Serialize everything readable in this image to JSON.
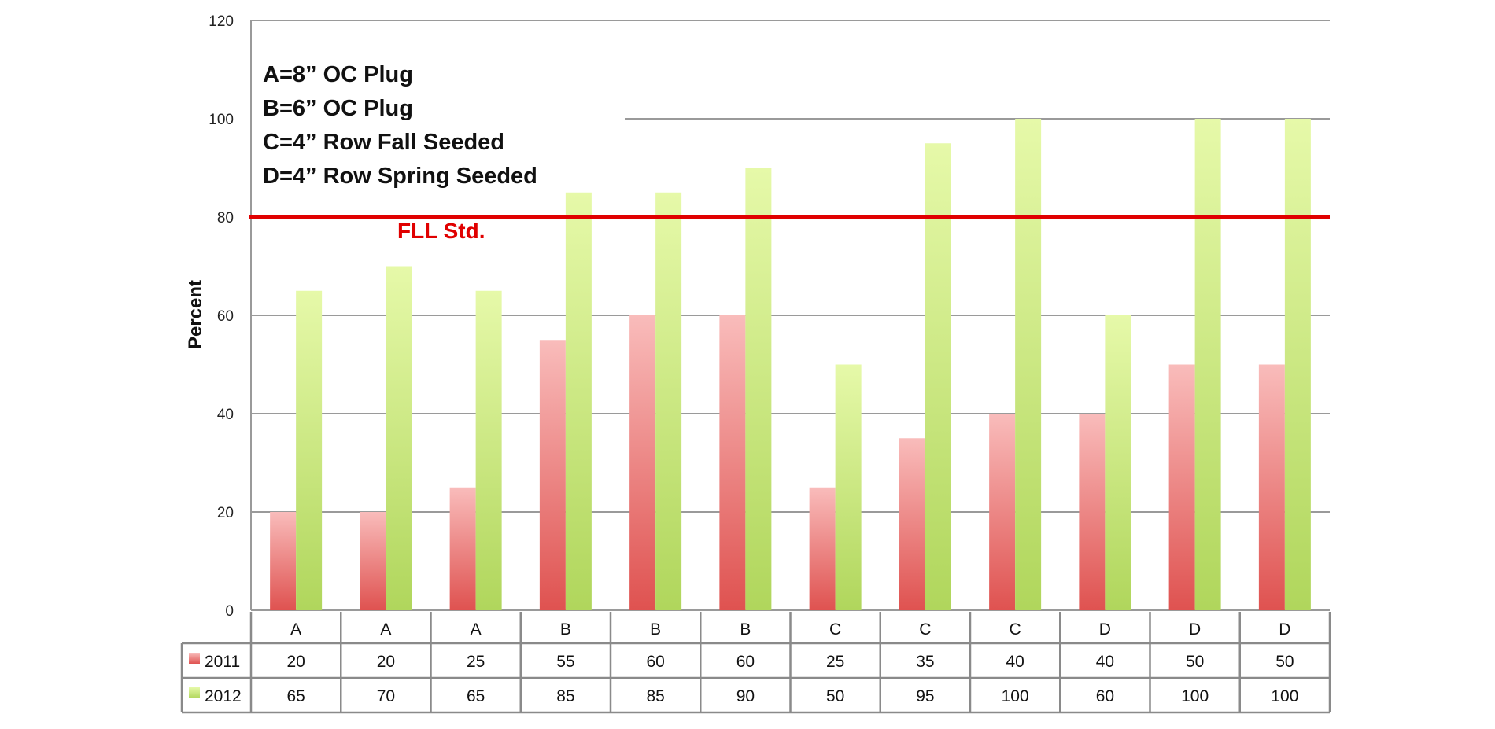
{
  "chart_data": {
    "type": "bar",
    "title": "",
    "xlabel": "",
    "ylabel": "Percent",
    "ylim": [
      0,
      120
    ],
    "yticks": [
      0,
      20,
      40,
      60,
      80,
      100,
      120
    ],
    "grid": true,
    "categories": [
      "A",
      "A",
      "A",
      "B",
      "B",
      "B",
      "C",
      "C",
      "C",
      "D",
      "D",
      "D"
    ],
    "series": [
      {
        "name": "2011",
        "color": "#e05a58",
        "values": [
          20,
          20,
          25,
          55,
          60,
          60,
          25,
          35,
          40,
          40,
          50,
          50
        ]
      },
      {
        "name": "2012",
        "color": "#b5d964",
        "values": [
          65,
          70,
          65,
          85,
          85,
          90,
          50,
          95,
          100,
          60,
          100,
          100
        ]
      }
    ],
    "reference_line": {
      "value": 80,
      "label": "FLL Std.",
      "color": "#e00000"
    },
    "annotations": [
      "A=8” OC Plug",
      "B=6” OC Plug",
      "C=4” Row Fall Seeded",
      "D=4” Row Spring Seeded"
    ],
    "legend": "data-table-bottom"
  }
}
